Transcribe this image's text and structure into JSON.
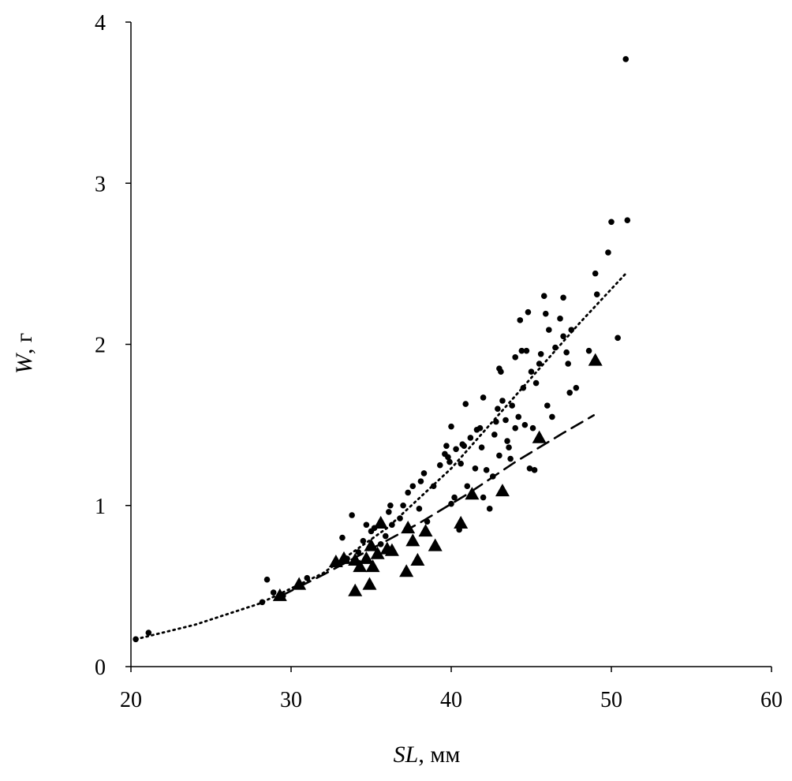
{
  "chart_data": {
    "type": "scatter",
    "xlabel_symbol": "SL",
    "xlabel_unit": ", мм",
    "ylabel_symbol": "W",
    "ylabel_unit": ", г",
    "xlim": [
      20,
      60
    ],
    "ylim": [
      0,
      4
    ],
    "x_ticks": [
      "20",
      "30",
      "40",
      "50",
      "60"
    ],
    "y_ticks": [
      "0",
      "1",
      "2",
      "3",
      "4"
    ],
    "grid": false,
    "legend": "none",
    "series": [
      {
        "marker": "circle",
        "trend": "dotted",
        "trend_curve": [
          [
            20.3,
            0.17
          ],
          [
            24,
            0.26
          ],
          [
            28,
            0.39
          ],
          [
            32,
            0.58
          ],
          [
            36,
            0.86
          ],
          [
            40,
            1.23
          ],
          [
            44,
            1.68
          ],
          [
            48,
            2.13
          ],
          [
            51,
            2.45
          ]
        ],
        "points": [
          [
            20.3,
            0.17
          ],
          [
            21.1,
            0.21
          ],
          [
            28.2,
            0.4
          ],
          [
            28.5,
            0.54
          ],
          [
            28.9,
            0.46
          ],
          [
            29.5,
            0.44
          ],
          [
            30.5,
            0.5
          ],
          [
            31.0,
            0.55
          ],
          [
            32.8,
            0.64
          ],
          [
            33.2,
            0.8
          ],
          [
            33.5,
            0.67
          ],
          [
            33.8,
            0.94
          ],
          [
            34.2,
            0.71
          ],
          [
            34.5,
            0.78
          ],
          [
            34.7,
            0.88
          ],
          [
            35.0,
            0.84
          ],
          [
            35.2,
            0.86
          ],
          [
            35.6,
            0.76
          ],
          [
            35.9,
            0.81
          ],
          [
            36.1,
            0.96
          ],
          [
            36.2,
            1.0
          ],
          [
            36.3,
            0.88
          ],
          [
            36.8,
            0.92
          ],
          [
            37.0,
            1.0
          ],
          [
            37.3,
            1.08
          ],
          [
            37.6,
            1.12
          ],
          [
            38.0,
            0.98
          ],
          [
            38.1,
            1.15
          ],
          [
            38.3,
            1.2
          ],
          [
            38.5,
            0.9
          ],
          [
            38.9,
            1.12
          ],
          [
            39.3,
            1.25
          ],
          [
            39.6,
            1.32
          ],
          [
            39.7,
            1.37
          ],
          [
            39.8,
            1.3
          ],
          [
            39.9,
            1.27
          ],
          [
            40.0,
            1.49
          ],
          [
            40.0,
            1.01
          ],
          [
            40.2,
            1.05
          ],
          [
            40.3,
            1.35
          ],
          [
            40.5,
            0.85
          ],
          [
            40.6,
            1.26
          ],
          [
            40.7,
            1.38
          ],
          [
            40.8,
            1.37
          ],
          [
            40.9,
            1.63
          ],
          [
            41.0,
            1.12
          ],
          [
            41.2,
            1.42
          ],
          [
            41.5,
            1.23
          ],
          [
            41.6,
            1.47
          ],
          [
            41.8,
            1.48
          ],
          [
            41.9,
            1.36
          ],
          [
            42.0,
            1.67
          ],
          [
            42.0,
            1.05
          ],
          [
            42.2,
            1.22
          ],
          [
            42.4,
            0.98
          ],
          [
            42.6,
            1.18
          ],
          [
            42.7,
            1.44
          ],
          [
            42.8,
            1.52
          ],
          [
            42.9,
            1.6
          ],
          [
            43.0,
            1.85
          ],
          [
            43.0,
            1.31
          ],
          [
            43.1,
            1.83
          ],
          [
            43.2,
            1.65
          ],
          [
            43.4,
            1.53
          ],
          [
            43.5,
            1.4
          ],
          [
            43.6,
            1.36
          ],
          [
            43.7,
            1.29
          ],
          [
            43.8,
            1.62
          ],
          [
            44.0,
            1.92
          ],
          [
            44.0,
            1.48
          ],
          [
            44.2,
            1.55
          ],
          [
            44.3,
            2.15
          ],
          [
            44.4,
            1.96
          ],
          [
            44.5,
            1.73
          ],
          [
            44.6,
            1.5
          ],
          [
            44.7,
            1.96
          ],
          [
            44.8,
            2.2
          ],
          [
            44.9,
            1.23
          ],
          [
            45.0,
            1.83
          ],
          [
            45.1,
            1.48
          ],
          [
            45.2,
            1.22
          ],
          [
            45.3,
            1.76
          ],
          [
            45.5,
            1.88
          ],
          [
            45.6,
            1.94
          ],
          [
            45.8,
            2.3
          ],
          [
            45.9,
            2.19
          ],
          [
            46.0,
            1.62
          ],
          [
            46.1,
            2.09
          ],
          [
            46.3,
            1.55
          ],
          [
            46.5,
            1.98
          ],
          [
            46.8,
            2.16
          ],
          [
            47.0,
            2.29
          ],
          [
            47.0,
            2.05
          ],
          [
            47.2,
            1.95
          ],
          [
            47.3,
            1.88
          ],
          [
            47.4,
            1.7
          ],
          [
            47.5,
            2.09
          ],
          [
            47.8,
            1.73
          ],
          [
            48.6,
            1.96
          ],
          [
            49.0,
            2.44
          ],
          [
            49.1,
            2.31
          ],
          [
            49.8,
            2.57
          ],
          [
            50.0,
            2.76
          ],
          [
            50.4,
            2.04
          ],
          [
            50.9,
            3.77
          ],
          [
            51.0,
            2.77
          ]
        ]
      },
      {
        "marker": "triangle",
        "trend": "dashed",
        "trend_curve": [
          [
            29.4,
            0.44
          ],
          [
            32,
            0.57
          ],
          [
            35,
            0.73
          ],
          [
            38,
            0.89
          ],
          [
            41,
            1.07
          ],
          [
            44,
            1.27
          ],
          [
            47,
            1.45
          ],
          [
            48.9,
            1.56
          ]
        ],
        "points": [
          [
            29.3,
            0.44
          ],
          [
            30.5,
            0.51
          ],
          [
            32.8,
            0.65
          ],
          [
            33.3,
            0.67
          ],
          [
            34.0,
            0.66
          ],
          [
            34.0,
            0.47
          ],
          [
            34.3,
            0.62
          ],
          [
            34.7,
            0.67
          ],
          [
            34.9,
            0.51
          ],
          [
            35.0,
            0.75
          ],
          [
            35.1,
            0.62
          ],
          [
            35.4,
            0.7
          ],
          [
            35.6,
            0.89
          ],
          [
            36.0,
            0.73
          ],
          [
            36.3,
            0.72
          ],
          [
            37.2,
            0.59
          ],
          [
            37.3,
            0.86
          ],
          [
            37.6,
            0.78
          ],
          [
            37.9,
            0.66
          ],
          [
            38.4,
            0.84
          ],
          [
            39.0,
            0.75
          ],
          [
            40.6,
            0.89
          ],
          [
            41.3,
            1.07
          ],
          [
            43.2,
            1.09
          ],
          [
            45.5,
            1.42
          ],
          [
            49.0,
            1.9
          ]
        ]
      }
    ]
  }
}
